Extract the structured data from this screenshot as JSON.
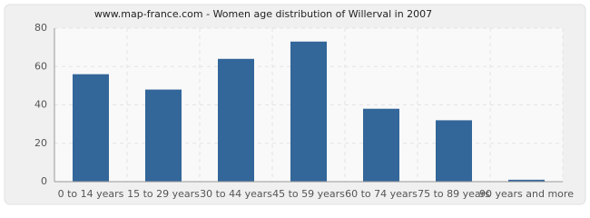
{
  "chart_data": {
    "type": "bar",
    "title": "www.map-france.com - Women age distribution of Willerval in 2007",
    "categories": [
      "0 to 14 years",
      "15 to 29 years",
      "30 to 44 years",
      "45 to 59 years",
      "60 to 74 years",
      "75 to 89 years",
      "90 years and more"
    ],
    "values": [
      56,
      48,
      64,
      73,
      38,
      32,
      1
    ],
    "color": "#336699",
    "ylim": [
      0,
      80
    ],
    "yticks": [
      0,
      20,
      40,
      60,
      80
    ],
    "grid": true
  }
}
